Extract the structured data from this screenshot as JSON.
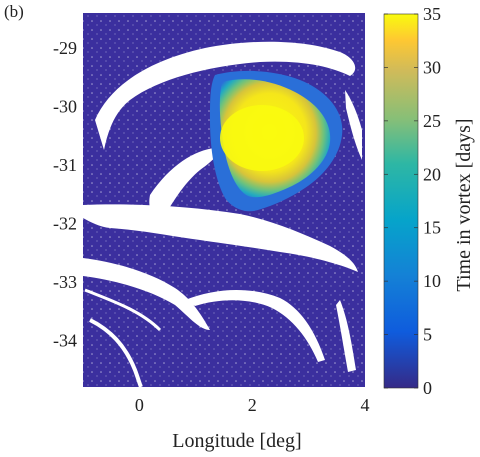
{
  "panel_label": "(b)",
  "chart_data": {
    "type": "heatmap",
    "xlabel": "Longitude [deg]",
    "ylabel": "",
    "x_ticks": [
      0,
      2,
      4
    ],
    "x_tick_labels": [
      "0",
      "2",
      "4"
    ],
    "y_ticks": [
      -29,
      -30,
      -31,
      -32,
      -33,
      -34
    ],
    "y_tick_labels": [
      "-29",
      "-30",
      "-31",
      "-32",
      "-33",
      "-34"
    ],
    "xlim": [
      -1,
      4
    ],
    "ylim": [
      -34.8,
      -28.4
    ],
    "colorbar": {
      "label": "Time in vortex [days]",
      "range": [
        0,
        35
      ],
      "ticks": [
        0,
        5,
        10,
        15,
        20,
        25,
        30,
        35
      ],
      "tick_labels": [
        "0",
        "5",
        "10",
        "15",
        "20",
        "25",
        "30",
        "35"
      ],
      "colormap": "parula"
    },
    "colors": {
      "background_field": "#3b2f9e",
      "gap": "#ffffff",
      "vortex_core": "#f5e61a"
    },
    "features": {
      "vortex_core_center": [
        2.3,
        -30.4
      ],
      "vortex_core_max_days": 35,
      "vortex_rim_min_days": 10
    }
  }
}
